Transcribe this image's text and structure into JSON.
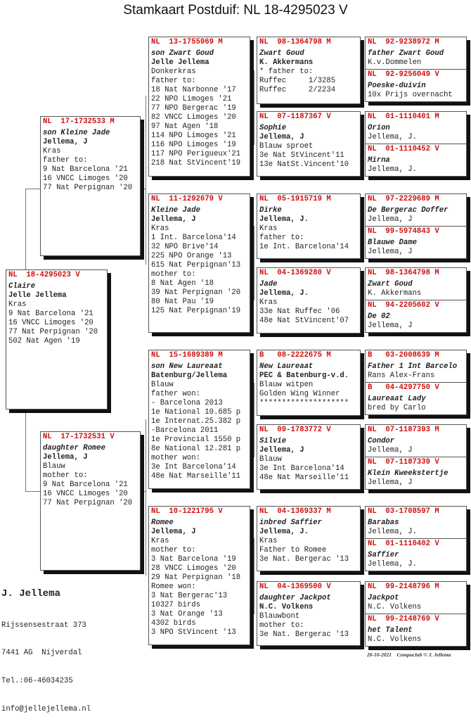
{
  "title": "Stamkaart Postduif: NL  18-4295023 V",
  "accent_color": "#d01010",
  "boxes": [
    {
      "id": "p0",
      "ring": "NL  18-4295023 V",
      "name": "Claire",
      "owner": "Jelle Jellema",
      "lines": [
        "Kras",
        "9 Nat Barcelona '21",
        "16 VNCC Limoges '20",
        "77 Nat Perpignan '20",
        "502 Nat Agen '19"
      ]
    },
    {
      "id": "f",
      "ring": "NL  17-1732533 M",
      "name": "son Kleine Jade",
      "owner": "Jellema, J",
      "lines": [
        "Kras",
        "father to:",
        "9 Nat Barcelona '21",
        "16 VNCC Limoges '20",
        "77 Nat Perpignan '20"
      ]
    },
    {
      "id": "m",
      "ring": "NL  17-1732531 V",
      "name": "daughter Romee",
      "owner": "Jellema, J",
      "lines": [
        "Blauw",
        "mother to:",
        "9 Nat Barcelona '21",
        "16 VNCC Limoges '20",
        "77 Nat Perpignan '20"
      ]
    },
    {
      "id": "ff",
      "ring": "NL  13-1755969 M",
      "name": "son Zwart Goud",
      "owner": "Jelle Jellema",
      "lines": [
        "Donkerkras",
        "father to:",
        "18 Nat Narbonne '17",
        "22 NPO Limoges '21",
        "77 NPO Bergerac '19",
        "82 VNCC Limoges '20",
        "97 Nat Agen '18",
        "114 NPO Limoges '21",
        "116 NPO Limoges '19",
        "117 NPO Perigueux'21",
        "218 Nat StVincent'19"
      ]
    },
    {
      "id": "fm",
      "ring": "NL  11-1292679 V",
      "name": "Kleine Jade",
      "owner": "Jellema, J",
      "lines": [
        "Kras",
        "1 Int. Barcelona'14",
        "32 NPO Brive'14",
        "225 NPO Orange '13",
        "615 Nat Perpignan'13",
        "mother to:",
        "8 Nat Agen '18",
        "39 Nat Perpignan '20",
        "80 Nat Pau '19",
        "125 Nat Perpignan'19"
      ]
    },
    {
      "id": "mf",
      "ring": "NL  15-1689389 M",
      "name": "son New Laureaat",
      "owner": "Batenburg/Jellema",
      "lines": [
        "Blauw",
        "father won:",
        "- Barcelona 2013",
        "1e National 10.685 p",
        "1e Internat.25.382 p",
        "-Barcelona 2011",
        "1e Provincial 1550 p",
        "8e National 12.281 p",
        "mother won:",
        "3e Int Barcelona'14",
        "48e Nat Marseille'11"
      ]
    },
    {
      "id": "mm",
      "ring": "NL  10-1221795 V",
      "name": "Romee",
      "owner": "Jellema, J",
      "lines": [
        "Kras",
        "mother to:",
        "3 Nat Barcelona '19",
        "28 VNCC Limoges '20",
        "29 Nat Perpignan '18",
        "Romee won:",
        "3 Nat Bergerac'13",
        "10327 birds",
        "3 Nat Orange '13",
        "4302 birds",
        "3 NPO StVincent '13"
      ]
    },
    {
      "id": "fff",
      "ring": "NL  98-1364798 M",
      "name": "Zwart Goud",
      "owner": "K. Akkermans",
      "lines": [
        "* father to:",
        "Ruffec     1/3285",
        "Ruffec     2/2234"
      ]
    },
    {
      "id": "ffm",
      "ring": "NL  07-1187367 V",
      "name": "Sophie",
      "owner": "Jellema, J",
      "lines": [
        "Blauw sproet",
        "3e Nat StVincent'11",
        "13e NatSt.Vincent'10"
      ]
    },
    {
      "id": "fmf",
      "ring": "NL  05-1915719 M",
      "name": "Dirke",
      "owner": "Jellema, J.",
      "lines": [
        "Kras",
        "father to:",
        "1e Int. Barcelona'14"
      ]
    },
    {
      "id": "fmm",
      "ring": "NL  04-1369280 V",
      "name": "Jade",
      "owner": "Jellema, J.",
      "lines": [
        "Kras",
        "33e Nat Ruffec '06",
        "48e Nat StVincent'07"
      ]
    },
    {
      "id": "mff",
      "ring": "B   08-2222675 M",
      "name": "New Laureaat",
      "owner": "PEC & Batenburg-v.d.",
      "lines": [
        "Blauw witpen",
        "Golden Wing Winner",
        "********************"
      ]
    },
    {
      "id": "mfm",
      "ring": "NL  09-1783772 V",
      "name": "Silvie",
      "owner": "Jellema, J",
      "lines": [
        "Blauw",
        "3e Int Barcelona'14",
        "48e Nat Marseille'11"
      ]
    },
    {
      "id": "mmf",
      "ring": "NL  04-1369337 M",
      "name": "inbred Saffier",
      "owner": "Jellema, J.",
      "lines": [
        "Kras",
        "Father to Romee",
        "3e Nat. Bergerac '13"
      ]
    },
    {
      "id": "mmm",
      "ring": "NL  04-1369500 V",
      "name": "daughter Jackpot",
      "owner": "N.C. Volkens",
      "lines": [
        "Blauwbont",
        "mother to:",
        "3e Nat. Bergerac '13"
      ]
    },
    {
      "id": "g4_1",
      "ring": "NL  92-9238972 M",
      "name": "father Zwart Goud",
      "owner": "K.v.Dommelen",
      "lines": []
    },
    {
      "id": "g4_2",
      "ring": "NL  92-9256049 V",
      "name": "Poeske-duivin",
      "owner": "10x Prijs overnacht",
      "lines": []
    },
    {
      "id": "g4_3",
      "ring": "NL  01-1110401 M",
      "name": "Orion",
      "owner": "Jellema, J.",
      "lines": []
    },
    {
      "id": "g4_4",
      "ring": "NL  01-1110452 V",
      "name": "Mirna",
      "owner": "Jellema, J.",
      "lines": []
    },
    {
      "id": "g4_5",
      "ring": "NL  97-2229689 M",
      "name": "De Bergerac Doffer",
      "owner": "Jellema, J",
      "lines": []
    },
    {
      "id": "g4_6",
      "ring": "NL  99-5974843 V",
      "name": "Blauwe Dame",
      "owner": "Jellema, J",
      "lines": []
    },
    {
      "id": "g4_7",
      "ring": "NL  98-1364798 M",
      "name": "Zwart Goud",
      "owner": "K. Akkermans",
      "lines": []
    },
    {
      "id": "g4_8",
      "ring": "NL  94-2205602 V",
      "name": "De 02",
      "owner": "Jellema, J",
      "lines": []
    },
    {
      "id": "g4_9",
      "ring": "B   03-2008639 M",
      "name": "Father 1 Int Barcelo",
      "owner": "Rans Alex-Frans",
      "lines": []
    },
    {
      "id": "g4_10",
      "ring": "B   04-4297750 V",
      "name": "Laureaat Lady",
      "owner": "bred by Carlo",
      "lines": []
    },
    {
      "id": "g4_11",
      "ring": "NL  07-1187393 M",
      "name": "Condor",
      "owner": "Jellema, J",
      "lines": []
    },
    {
      "id": "g4_12",
      "ring": "NL  07-1187339 V",
      "name": "Klein Kweekstertje",
      "owner": "Jellema, J",
      "lines": []
    },
    {
      "id": "g4_13",
      "ring": "NL  03-1708597 M",
      "name": "Barabas",
      "owner": "Jellema, J.",
      "lines": []
    },
    {
      "id": "g4_14",
      "ring": "NL  01-1110402 V",
      "name": "Saffier",
      "owner": "Jellema, J.",
      "lines": []
    },
    {
      "id": "g4_15",
      "ring": "NL  99-2148796 M",
      "name": "Jackpot",
      "owner": "N.C. Volkens",
      "lines": []
    },
    {
      "id": "g4_16",
      "ring": "NL  99-2148769 V",
      "name": "het Talent",
      "owner": "N.C. Volkens",
      "lines": []
    }
  ],
  "footer": {
    "breeder_name": "J. Jellema",
    "address_lines": [
      "Rijssensestraat 373",
      "7441 AG  Nijverdal",
      "Tel.:06-46034235",
      "info@jellejellema.nl"
    ],
    "date": "20-10-2021",
    "credit": "Compuclub © J. Jellema"
  }
}
